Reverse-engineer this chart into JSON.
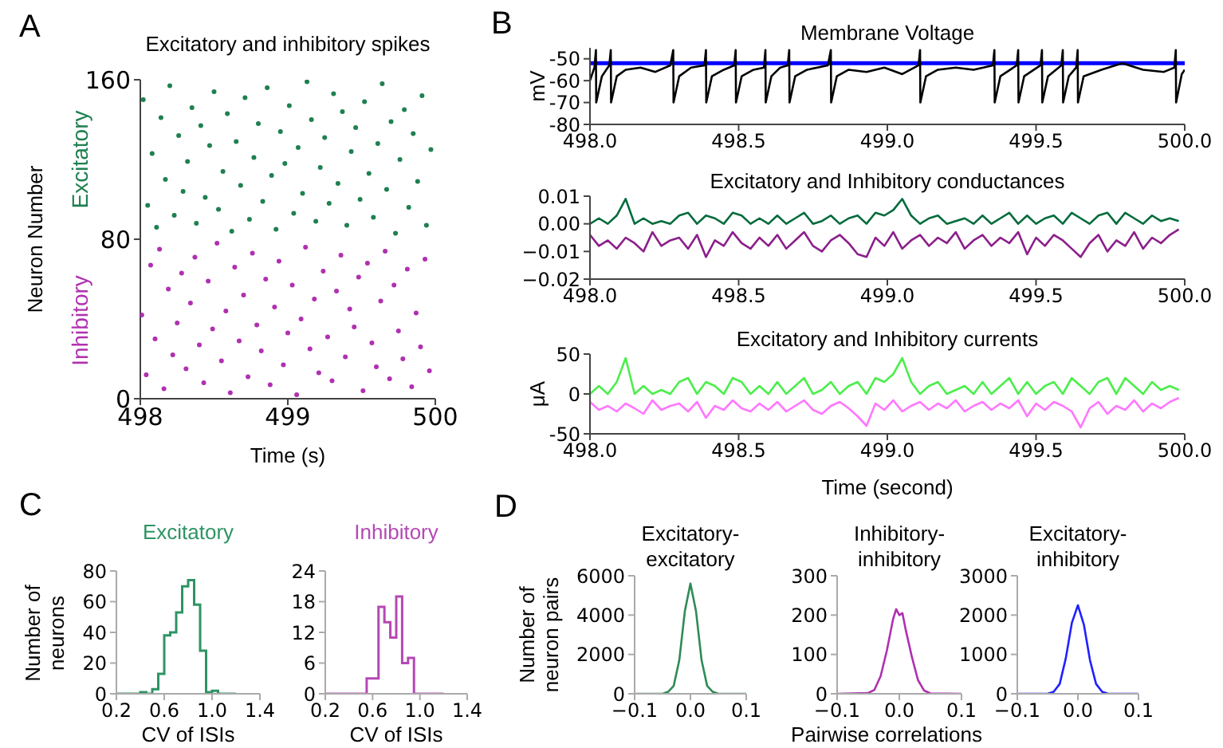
{
  "chart_data": [
    {
      "type": "scatter",
      "title": "Excitatory and inhibitory spikes",
      "xlabel": "Time (s)",
      "ylabel": "Neuron Number",
      "annotations": [
        "A"
      ],
      "xlim": [
        498,
        500
      ],
      "xticks": [
        498,
        499,
        500
      ],
      "ylim": [
        0,
        160
      ],
      "yticks": [
        0,
        80,
        160
      ],
      "marker": "circle",
      "series": [
        {
          "name": "Excitatory",
          "color": "#1f8050",
          "x": [
            498.02,
            498.05,
            498.08,
            498.11,
            498.14,
            498.17,
            498.2,
            498.23,
            498.26,
            498.29,
            498.32,
            498.35,
            498.38,
            498.41,
            498.44,
            498.47,
            498.5,
            498.53,
            498.56,
            498.59,
            498.62,
            498.65,
            498.68,
            498.71,
            498.74,
            498.77,
            498.8,
            498.83,
            498.86,
            498.89,
            498.92,
            498.95,
            498.98,
            499.01,
            499.04,
            499.07,
            499.1,
            499.13,
            499.16,
            499.19,
            499.22,
            499.25,
            499.28,
            499.31,
            499.34,
            499.37,
            499.4,
            499.43,
            499.46,
            499.49,
            499.52,
            499.55,
            499.58,
            499.61,
            499.64,
            499.67,
            499.7,
            499.73,
            499.76,
            499.79,
            499.82,
            499.85,
            499.88,
            499.91,
            499.94,
            499.97
          ],
          "values": [
            150,
            97,
            123,
            86,
            141,
            110,
            157,
            92,
            132,
            104,
            119,
            146,
            88,
            137,
            101,
            127,
            154,
            95,
            114,
            143,
            84,
            129,
            107,
            151,
            90,
            121,
            138,
            99,
            156,
            112,
            85,
            134,
            118,
            147,
            93,
            126,
            103,
            159,
            140,
            89,
            116,
            131,
            98,
            153,
            108,
            144,
            87,
            124,
            136,
            100,
            149,
            113,
            91,
            128,
            158,
            105,
            139,
            83,
            120,
            145,
            96,
            133,
            109,
            152,
            87,
            125
          ]
        },
        {
          "name": "Inhibitory",
          "color": "#b030b0",
          "x": [
            498.01,
            498.04,
            498.07,
            498.1,
            498.13,
            498.16,
            498.19,
            498.22,
            498.25,
            498.28,
            498.31,
            498.34,
            498.37,
            498.4,
            498.43,
            498.46,
            498.49,
            498.52,
            498.55,
            498.58,
            498.61,
            498.64,
            498.67,
            498.7,
            498.73,
            498.76,
            498.79,
            498.82,
            498.85,
            498.88,
            498.91,
            498.94,
            498.97,
            499,
            499.03,
            499.06,
            499.09,
            499.12,
            499.15,
            499.18,
            499.21,
            499.24,
            499.27,
            499.3,
            499.33,
            499.36,
            499.39,
            499.42,
            499.45,
            499.48,
            499.51,
            499.54,
            499.57,
            499.6,
            499.63,
            499.66,
            499.69,
            499.72,
            499.75,
            499.78,
            499.81,
            499.84,
            499.87,
            499.9,
            499.93,
            499.96
          ],
          "values": [
            42,
            12,
            67,
            30,
            75,
            5,
            55,
            22,
            38,
            63,
            15,
            48,
            71,
            27,
            8,
            59,
            35,
            78,
            19,
            44,
            3,
            66,
            29,
            52,
            11,
            73,
            37,
            24,
            60,
            7,
            46,
            69,
            17,
            33,
            57,
            2,
            40,
            76,
            25,
            50,
            13,
            64,
            31,
            9,
            54,
            72,
            21,
            45,
            36,
            61,
            4,
            68,
            28,
            16,
            49,
            74,
            10,
            57,
            34,
            20,
            65,
            6,
            43,
            26,
            70,
            14
          ]
        }
      ]
    },
    {
      "type": "line",
      "title": "Membrane Voltage",
      "ylabel": "mV",
      "annotations": [
        "B"
      ],
      "xlim": [
        498,
        500
      ],
      "xticks": [
        {
          "value": 498,
          "label": "498.0"
        },
        {
          "value": 498.5,
          "label": "498.5"
        },
        {
          "value": 499,
          "label": "499.0"
        },
        {
          "value": 499.5,
          "label": "499.5"
        },
        {
          "value": 500,
          "label": "500.0"
        }
      ],
      "ylim": [
        -80,
        -45
      ],
      "yticks": [
        -80,
        -70,
        -60,
        -50
      ],
      "ref_lines": [
        {
          "axis": "y",
          "value": -52,
          "color": "#0000ff"
        }
      ],
      "x": [
        498,
        498.015,
        498.02,
        498.021,
        498.04,
        498.065,
        498.07,
        498.071,
        498.09,
        498.12,
        498.17,
        498.22,
        498.27,
        498.28,
        498.281,
        498.3,
        498.34,
        498.385,
        498.39,
        498.391,
        498.41,
        498.45,
        498.485,
        498.49,
        498.491,
        498.51,
        498.55,
        498.585,
        498.59,
        498.591,
        498.61,
        498.64,
        498.665,
        498.67,
        498.671,
        498.69,
        498.73,
        498.8,
        498.81,
        498.811,
        498.83,
        498.87,
        498.93,
        498.99,
        499.05,
        499.105,
        499.11,
        499.111,
        499.13,
        499.17,
        499.23,
        499.29,
        499.355,
        499.36,
        499.361,
        499.38,
        499.435,
        499.44,
        499.441,
        499.46,
        499.515,
        499.52,
        499.521,
        499.54,
        499.585,
        499.59,
        499.591,
        499.61,
        499.635,
        499.64,
        499.641,
        499.66,
        499.72,
        499.79,
        499.86,
        499.93,
        499.965,
        499.97,
        499.971,
        499.99,
        500
      ],
      "series": [
        {
          "color": "#000000",
          "values": [
            -60,
            -54,
            -46,
            -70,
            -58,
            -53,
            -46,
            -70,
            -58,
            -55,
            -54,
            -56,
            -53,
            -46,
            -70,
            -58,
            -54,
            -53,
            -46,
            -70,
            -58,
            -55,
            -53,
            -46,
            -70,
            -58,
            -55,
            -54,
            -46,
            -70,
            -58,
            -54,
            -53,
            -46,
            -70,
            -58,
            -55,
            -53,
            -46,
            -70,
            -58,
            -55,
            -56,
            -54,
            -57,
            -53,
            -46,
            -70,
            -58,
            -55,
            -54,
            -55,
            -53,
            -46,
            -70,
            -58,
            -53,
            -46,
            -70,
            -58,
            -53,
            -46,
            -70,
            -58,
            -53,
            -46,
            -70,
            -58,
            -54,
            -46,
            -70,
            -58,
            -55,
            -52,
            -55,
            -56,
            -54,
            -46,
            -70,
            -57,
            -55
          ]
        }
      ]
    },
    {
      "type": "line",
      "title": "Excitatory and Inhibitory conductances",
      "xlim": [
        498,
        500
      ],
      "xticks": [
        {
          "value": 498,
          "label": "498.0"
        },
        {
          "value": 498.5,
          "label": "498.5"
        },
        {
          "value": 499,
          "label": "499.0"
        },
        {
          "value": 499.5,
          "label": "499.5"
        },
        {
          "value": 500,
          "label": "500.0"
        }
      ],
      "ylim": [
        -0.02,
        0.01
      ],
      "yticks": [
        {
          "value": -0.02,
          "label": "−0.02"
        },
        {
          "value": -0.01,
          "label": "−0.01"
        },
        {
          "value": 0,
          "label": "0.00"
        },
        {
          "value": 0.01,
          "label": "0.01"
        }
      ],
      "x": [
        498,
        498.03,
        498.06,
        498.09,
        498.12,
        498.15,
        498.18,
        498.21,
        498.24,
        498.27,
        498.3,
        498.33,
        498.36,
        498.39,
        498.42,
        498.45,
        498.48,
        498.51,
        498.54,
        498.57,
        498.6,
        498.63,
        498.66,
        498.69,
        498.72,
        498.75,
        498.78,
        498.81,
        498.84,
        498.87,
        498.9,
        498.93,
        498.96,
        498.99,
        499.02,
        499.05,
        499.08,
        499.11,
        499.14,
        499.17,
        499.2,
        499.23,
        499.26,
        499.29,
        499.32,
        499.35,
        499.38,
        499.41,
        499.44,
        499.47,
        499.5,
        499.53,
        499.56,
        499.59,
        499.62,
        499.65,
        499.68,
        499.71,
        499.74,
        499.77,
        499.8,
        499.83,
        499.86,
        499.89,
        499.92,
        499.95,
        499.98
      ],
      "series": [
        {
          "color": "#006b3c",
          "values": [
            0,
            0.002,
            0,
            0.003,
            0.009,
            0,
            0.002,
            0,
            0.001,
            0,
            0.003,
            0.004,
            0,
            0.003,
            0.002,
            0,
            0.004,
            0.003,
            0,
            0.002,
            0,
            0.003,
            0,
            0.002,
            0.004,
            0,
            0.001,
            0.003,
            0,
            0.002,
            0.003,
            0,
            0.004,
            0.003,
            0.005,
            0.009,
            0.003,
            0,
            0.002,
            0.003,
            0,
            0.001,
            0.002,
            0,
            0.003,
            0,
            0.002,
            0.004,
            0,
            0.003,
            0,
            0.002,
            0.003,
            0,
            0.004,
            0.002,
            0,
            0.003,
            0.004,
            0,
            0.004,
            0.002,
            0,
            0.003,
            0.001,
            0.002,
            0.001
          ]
        },
        {
          "color": "#8b1f8b",
          "values": [
            -0.004,
            -0.008,
            -0.006,
            -0.009,
            -0.005,
            -0.007,
            -0.01,
            -0.003,
            -0.008,
            -0.006,
            -0.005,
            -0.009,
            -0.004,
            -0.012,
            -0.006,
            -0.008,
            -0.003,
            -0.007,
            -0.009,
            -0.005,
            -0.008,
            -0.004,
            -0.009,
            -0.006,
            -0.003,
            -0.008,
            -0.01,
            -0.006,
            -0.004,
            -0.007,
            -0.011,
            -0.012,
            -0.005,
            -0.008,
            -0.003,
            -0.009,
            -0.006,
            -0.004,
            -0.008,
            -0.005,
            -0.007,
            -0.003,
            -0.009,
            -0.006,
            -0.004,
            -0.008,
            -0.005,
            -0.007,
            -0.003,
            -0.011,
            -0.005,
            -0.008,
            -0.004,
            -0.006,
            -0.009,
            -0.012,
            -0.007,
            -0.004,
            -0.01,
            -0.006,
            -0.008,
            -0.003,
            -0.009,
            -0.005,
            -0.007,
            -0.004,
            -0.002
          ]
        }
      ]
    },
    {
      "type": "line",
      "title": "Excitatory and Inhibitory currents",
      "xlabel": "Time (second)",
      "ylabel": "μA",
      "xlim": [
        498,
        500
      ],
      "xticks": [
        {
          "value": 498,
          "label": "498.0"
        },
        {
          "value": 498.5,
          "label": "498.5"
        },
        {
          "value": 499,
          "label": "499.0"
        },
        {
          "value": 499.5,
          "label": "499.5"
        },
        {
          "value": 500,
          "label": "500.0"
        }
      ],
      "ylim": [
        -50,
        50
      ],
      "yticks": [
        -50,
        0,
        50
      ],
      "x": [
        498,
        498.03,
        498.06,
        498.09,
        498.12,
        498.15,
        498.18,
        498.21,
        498.24,
        498.27,
        498.3,
        498.33,
        498.36,
        498.39,
        498.42,
        498.45,
        498.48,
        498.51,
        498.54,
        498.57,
        498.6,
        498.63,
        498.66,
        498.69,
        498.72,
        498.75,
        498.78,
        498.81,
        498.84,
        498.87,
        498.9,
        498.93,
        498.96,
        498.99,
        499.02,
        499.05,
        499.08,
        499.11,
        499.14,
        499.17,
        499.2,
        499.23,
        499.26,
        499.29,
        499.32,
        499.35,
        499.38,
        499.41,
        499.44,
        499.47,
        499.5,
        499.53,
        499.56,
        499.59,
        499.62,
        499.65,
        499.68,
        499.71,
        499.74,
        499.77,
        499.8,
        499.83,
        499.86,
        499.89,
        499.92,
        499.95,
        499.98
      ],
      "series": [
        {
          "color": "#4cee4c",
          "values": [
            0,
            10,
            0,
            15,
            45,
            0,
            10,
            0,
            5,
            0,
            15,
            20,
            0,
            15,
            10,
            0,
            20,
            15,
            0,
            10,
            0,
            15,
            0,
            10,
            20,
            0,
            5,
            15,
            0,
            10,
            15,
            0,
            20,
            15,
            25,
            45,
            15,
            0,
            10,
            15,
            0,
            5,
            10,
            0,
            15,
            0,
            10,
            20,
            0,
            15,
            0,
            10,
            15,
            0,
            20,
            10,
            0,
            15,
            20,
            0,
            20,
            10,
            0,
            15,
            5,
            10,
            5
          ]
        },
        {
          "color": "#ff77ff",
          "values": [
            -10,
            -20,
            -15,
            -22,
            -12,
            -18,
            -25,
            -8,
            -20,
            -15,
            -12,
            -22,
            -10,
            -30,
            -15,
            -20,
            -8,
            -18,
            -22,
            -12,
            -20,
            -10,
            -22,
            -15,
            -8,
            -20,
            -25,
            -15,
            -10,
            -18,
            -28,
            -40,
            -12,
            -20,
            -8,
            -22,
            -15,
            -10,
            -20,
            -12,
            -18,
            -8,
            -22,
            -15,
            -10,
            -20,
            -12,
            -18,
            -8,
            -28,
            -12,
            -20,
            -10,
            -15,
            -22,
            -42,
            -18,
            -10,
            -25,
            -15,
            -20,
            -8,
            -22,
            -12,
            -18,
            -10,
            -5
          ]
        }
      ]
    },
    {
      "type": "histogram",
      "title": "Excitatory",
      "xlabel": "CV of ISIs",
      "ylabel": "Number of neurons",
      "annotations": [
        "C"
      ],
      "xlim": [
        0.2,
        1.4
      ],
      "xticks": [
        0.2,
        0.6,
        {
          "value": 1,
          "label": "1.0"
        },
        1.4
      ],
      "ylim": [
        0,
        80
      ],
      "yticks": [
        0,
        20,
        40,
        60,
        80
      ],
      "bins": [
        0.2,
        0.25,
        0.3,
        0.35,
        0.4,
        0.45,
        0.5,
        0.55,
        0.6,
        0.65,
        0.7,
        0.75,
        0.8,
        0.85,
        0.9,
        0.95,
        1,
        1.05,
        1.1,
        1.15,
        1.2
      ],
      "series": [
        {
          "color": "#2e9464",
          "values": [
            0,
            0,
            0,
            0,
            1,
            0,
            3,
            13,
            38,
            40,
            53,
            70,
            74,
            58,
            28,
            1,
            2,
            0,
            0,
            0
          ]
        }
      ]
    },
    {
      "type": "histogram",
      "title": "Inhibitory",
      "xlabel": "CV of ISIs",
      "xlim": [
        0.2,
        1.4
      ],
      "xticks": [
        0.2,
        0.6,
        {
          "value": 1,
          "label": "1.0"
        },
        1.4
      ],
      "ylim": [
        0,
        24
      ],
      "yticks": [
        0,
        6,
        12,
        18,
        24
      ],
      "bins": [
        0.2,
        0.25,
        0.3,
        0.35,
        0.4,
        0.45,
        0.5,
        0.55,
        0.6,
        0.65,
        0.7,
        0.75,
        0.8,
        0.85,
        0.9,
        0.95,
        1,
        1.05,
        1.1,
        1.15,
        1.2
      ],
      "series": [
        {
          "color": "#b548b5",
          "values": [
            0,
            0,
            0,
            0,
            0,
            0,
            0,
            3,
            3,
            17,
            14,
            11,
            19,
            6,
            7,
            0,
            0,
            0,
            0,
            0
          ]
        }
      ]
    },
    {
      "type": "line",
      "title": "Excitatory-excitatory",
      "ylabel": "Number of neuron pairs",
      "annotations": [
        "D"
      ],
      "xlim": [
        -0.1,
        0.1
      ],
      "xticks": [
        {
          "value": -0.1,
          "label": "−0.1"
        },
        {
          "value": 0,
          "label": "0.0"
        },
        0.1
      ],
      "ylim": [
        0,
        6000
      ],
      "yticks": [
        0,
        2000,
        4000,
        6000
      ],
      "x": [
        -0.1,
        -0.06,
        -0.05,
        -0.04,
        -0.03,
        -0.02,
        -0.01,
        0,
        0.01,
        0.02,
        0.03,
        0.04,
        0.05,
        0.06,
        0.1
      ],
      "series": [
        {
          "color": "#2e8b57",
          "values": [
            0,
            0,
            0,
            100,
            400,
            1700,
            4200,
            5600,
            4200,
            1700,
            400,
            100,
            0,
            0,
            0
          ]
        }
      ]
    },
    {
      "type": "line",
      "title": "Inhibitory-inhibitory",
      "xlabel": "Pairwise correlations",
      "xlim": [
        -0.1,
        0.1
      ],
      "xticks": [
        {
          "value": -0.1,
          "label": "−0.1"
        },
        {
          "value": 0,
          "label": "0.0"
        },
        0.1
      ],
      "ylim": [
        0,
        300
      ],
      "yticks": [
        0,
        100,
        200,
        300
      ],
      "x": [
        -0.1,
        -0.05,
        -0.04,
        -0.03,
        -0.02,
        -0.01,
        -0.005,
        0,
        0.005,
        0.01,
        0.02,
        0.03,
        0.04,
        0.05,
        0.1
      ],
      "series": [
        {
          "color": "#b030b0",
          "values": [
            0,
            2,
            10,
            45,
            110,
            190,
            215,
            200,
            205,
            165,
            95,
            35,
            8,
            1,
            0
          ]
        }
      ]
    },
    {
      "type": "line",
      "title": "Excitatory-inhibitory",
      "xlim": [
        -0.1,
        0.1
      ],
      "xticks": [
        {
          "value": -0.1,
          "label": "−0.1"
        },
        {
          "value": 0,
          "label": "0.0"
        },
        0.1
      ],
      "ylim": [
        0,
        3000
      ],
      "yticks": [
        0,
        1000,
        2000,
        3000
      ],
      "x": [
        -0.1,
        -0.05,
        -0.04,
        -0.03,
        -0.02,
        -0.01,
        0,
        0.01,
        0.02,
        0.03,
        0.04,
        0.05,
        0.1
      ],
      "series": [
        {
          "color": "#2020ff",
          "values": [
            0,
            0,
            50,
            250,
            900,
            1800,
            2250,
            1750,
            850,
            250,
            50,
            0,
            0
          ]
        }
      ]
    }
  ]
}
